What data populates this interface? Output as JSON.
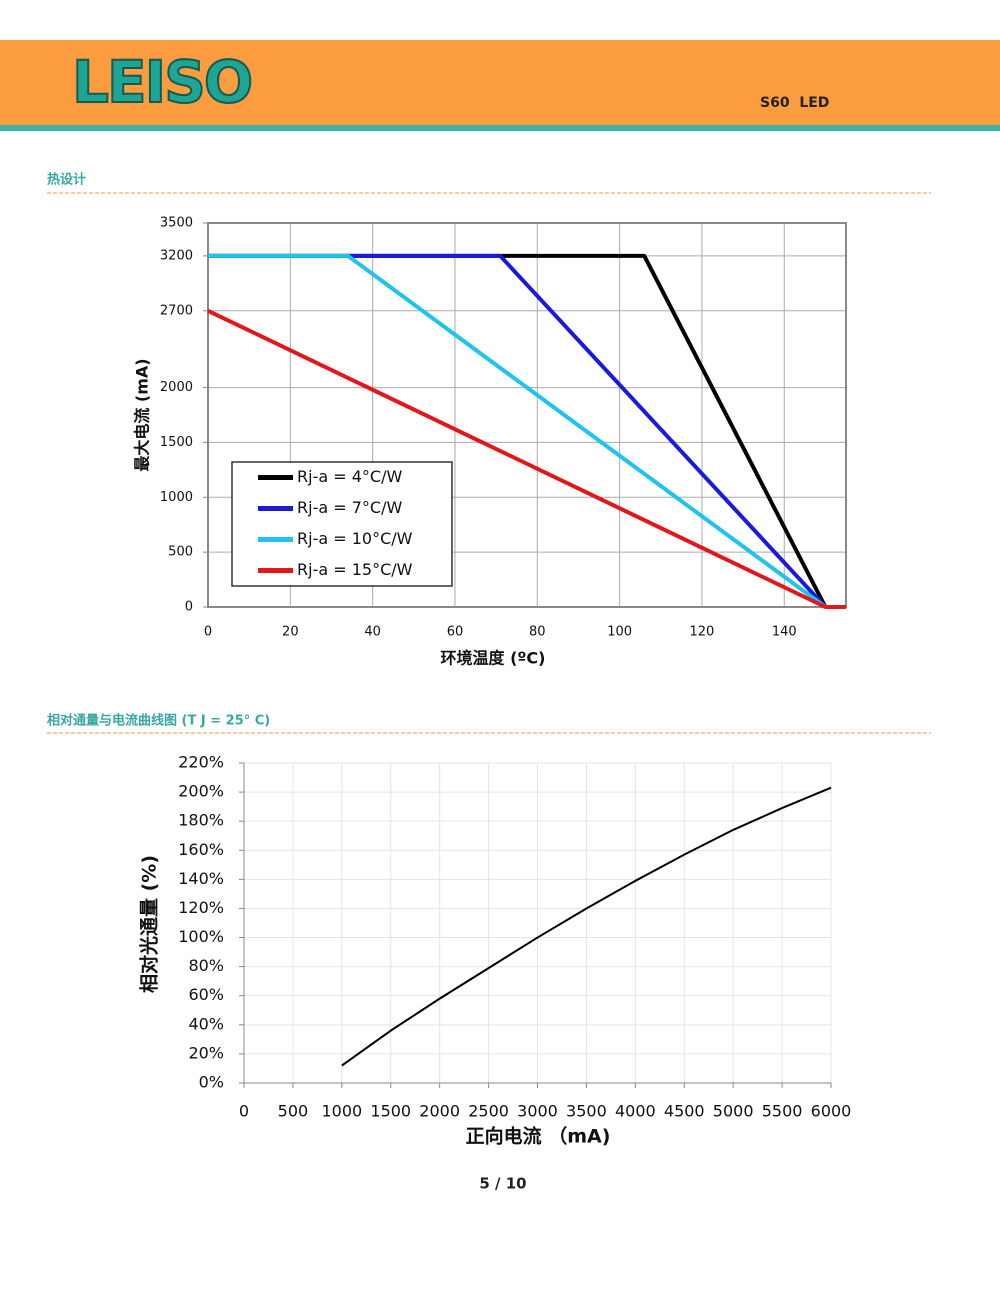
{
  "header": {
    "logo": "LEISO",
    "product": "S60  LED"
  },
  "sections": [
    {
      "title": "热设计"
    },
    {
      "title": "相对通量与电流曲线图 (T J = 25° C)"
    }
  ],
  "chart_data": [
    {
      "type": "line",
      "xlabel": "环境温度 (ºC)",
      "ylabel": "最大电流 (mA)",
      "xlim": [
        0,
        155
      ],
      "xticks": [
        0,
        20,
        40,
        60,
        80,
        100,
        120,
        140
      ],
      "ylim": [
        0,
        3500
      ],
      "yticks": [
        0,
        500,
        1000,
        1500,
        2000,
        2700,
        3200,
        3500
      ],
      "grid": true,
      "legend": "lower left",
      "series": [
        {
          "name": "Rj-a = 4°C/W",
          "color": "#000000",
          "x": [
            0,
            106,
            150
          ],
          "values": [
            3200,
            3200,
            0
          ]
        },
        {
          "name": "Rj-a = 7°C/W",
          "color": "#1a1adb",
          "x": [
            0,
            71,
            150
          ],
          "values": [
            3200,
            3200,
            0
          ]
        },
        {
          "name": "Rj-a = 10°C/W",
          "color": "#1ec3ef",
          "x": [
            0,
            34,
            150
          ],
          "values": [
            3200,
            3200,
            0
          ]
        },
        {
          "name": "Rj-a = 15°C/W",
          "color": "#e3161a",
          "x": [
            0,
            150,
            155
          ],
          "values": [
            2700,
            0,
            0
          ]
        }
      ]
    },
    {
      "type": "line",
      "xlabel": "正向电流 （mA)",
      "ylabel": "相对光通量 (%)",
      "xlim": [
        0,
        6000
      ],
      "xticks": [
        0,
        500,
        1000,
        1500,
        2000,
        2500,
        3000,
        3500,
        4000,
        4500,
        5000,
        5500,
        6000
      ],
      "ylim": [
        0,
        220
      ],
      "yticks": [
        {
          "value": 0,
          "label": "0%"
        },
        {
          "value": 20,
          "label": "20%"
        },
        {
          "value": 40,
          "label": "40%"
        },
        {
          "value": 60,
          "label": "60%"
        },
        {
          "value": 80,
          "label": "80%"
        },
        {
          "value": 100,
          "label": "100%"
        },
        {
          "value": 120,
          "label": "120%"
        },
        {
          "value": 140,
          "label": "140%"
        },
        {
          "value": 160,
          "label": "160%"
        },
        {
          "value": 180,
          "label": "180%"
        },
        {
          "value": 200,
          "label": "200%"
        },
        {
          "value": 220,
          "label": "220%"
        }
      ],
      "grid": true,
      "x": [
        1000,
        1500,
        2000,
        2500,
        3000,
        3500,
        4000,
        4500,
        5000,
        5500,
        6000
      ],
      "series": [
        {
          "color": "#000000",
          "values": [
            12,
            36,
            58,
            79,
            100,
            120,
            139,
            157,
            174,
            189,
            203
          ]
        }
      ]
    }
  ],
  "footer": {
    "page": "5 / 10"
  }
}
